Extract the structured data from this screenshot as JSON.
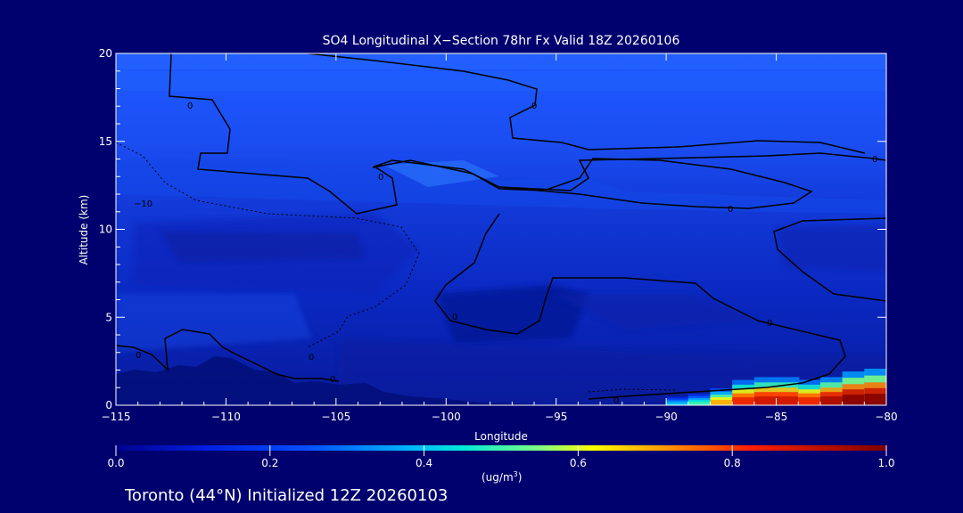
{
  "chart_data": {
    "type": "heatmap",
    "title": "SO4 Longitudinal X−Section 78hr  Fx Valid 18Z 20260106",
    "xlabel": "Longitude",
    "ylabel": "Altitude (km)",
    "xlim": [
      -115,
      -80
    ],
    "ylim": [
      0,
      20
    ],
    "x_ticks": [
      -115,
      -110,
      -105,
      -100,
      -95,
      -90,
      -85,
      -80
    ],
    "x_tick_labels": [
      "−115",
      "−110",
      "−105",
      "−100",
      "−95",
      "−90",
      "−85",
      "−80"
    ],
    "y_ticks": [
      0,
      5,
      10,
      15,
      20
    ],
    "y_tick_labels": [
      "0",
      "5",
      "10",
      "15",
      "20"
    ],
    "colorbar": {
      "min": 0.0,
      "max": 1.0,
      "ticks": [
        0.0,
        0.2,
        0.4,
        0.6,
        0.8,
        1.0
      ],
      "tick_labels": [
        "0.0",
        "0.2",
        "0.4",
        "0.6",
        "0.8",
        "1.0"
      ],
      "label_base": "(ug/m",
      "label_sup": "3",
      "label_end": ")"
    },
    "contour_labels": [
      "0",
      "0",
      "0",
      "0",
      "0",
      "0",
      "0",
      "0",
      "0",
      "0",
      "0",
      "−10"
    ],
    "surface_plume": {
      "lon": [
        -90,
        -89,
        -88,
        -87,
        -86,
        -85,
        -84,
        -83,
        -82,
        -81,
        -80
      ],
      "peak_km": [
        0.3,
        0.4,
        0.6,
        0.9,
        1.0,
        1.0,
        0.9,
        1.0,
        1.2,
        1.3,
        1.2
      ],
      "peak_value": [
        0.4,
        0.5,
        0.7,
        0.85,
        0.9,
        0.9,
        0.85,
        0.95,
        1.0,
        1.0,
        0.9
      ]
    }
  },
  "footer": {
    "location_text": "Toronto (44°N) Initialized 12Z 20260103"
  }
}
